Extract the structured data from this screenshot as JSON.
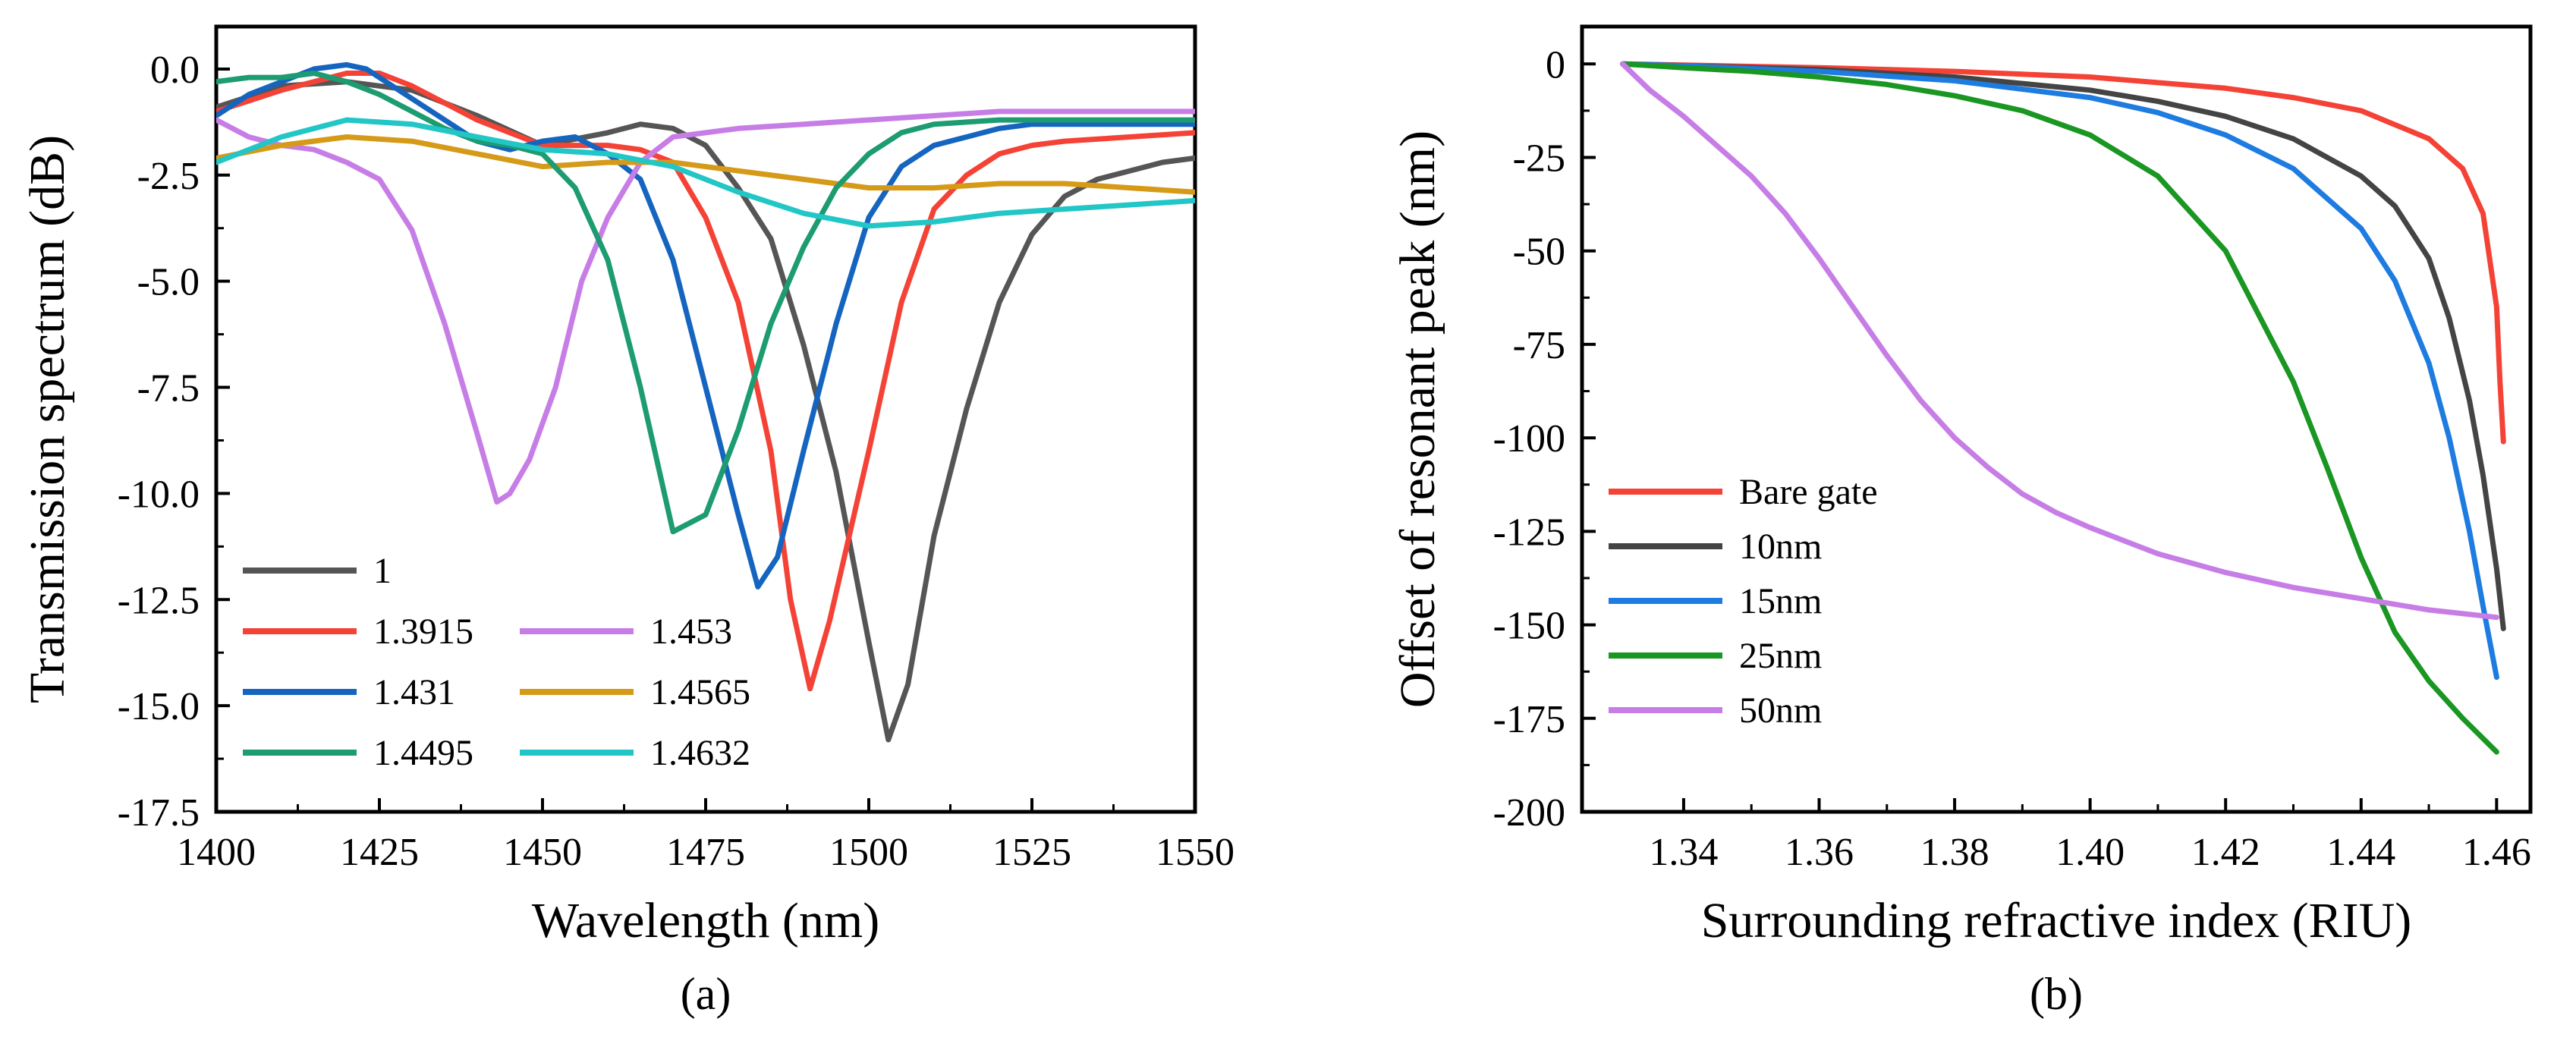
{
  "figure": {
    "panels": [
      {
        "label": "(a)",
        "chart_data": {
          "type": "line",
          "xlabel": "Wavelength (nm)",
          "ylabel": "Transmission spectrum (dB)",
          "xlim": [
            1400,
            1550
          ],
          "ylim": [
            -17.5,
            1.0
          ],
          "xticks": [
            1400,
            1425,
            1450,
            1475,
            1500,
            1525,
            1550
          ],
          "yticks": [
            0.0,
            -2.5,
            -5.0,
            -7.5,
            -10.0,
            -12.5,
            -15.0,
            -17.5
          ],
          "ytick_labels": [
            "0.0",
            "-2.5",
            "-5.0",
            "-7.5",
            "-10.0",
            "-12.5",
            "-15.0",
            "-17.5"
          ],
          "legend_position": "bottom-left",
          "legend_columns": 2,
          "series": [
            {
              "name": "1",
              "color": "#555555",
              "x": [
                1400,
                1410,
                1420,
                1430,
                1440,
                1450,
                1460,
                1465,
                1470,
                1475,
                1480,
                1485,
                1490,
                1495,
                1500,
                1503,
                1506,
                1510,
                1515,
                1520,
                1525,
                1530,
                1535,
                1540,
                1545,
                1550
              ],
              "y": [
                -0.9,
                -0.4,
                -0.3,
                -0.5,
                -1.1,
                -1.8,
                -1.5,
                -1.3,
                -1.4,
                -1.8,
                -2.8,
                -4.0,
                -6.5,
                -9.5,
                -13.5,
                -15.8,
                -14.5,
                -11.0,
                -8.0,
                -5.5,
                -3.9,
                -3.0,
                -2.6,
                -2.4,
                -2.2,
                -2.1
              ]
            },
            {
              "name": "1.3915",
              "color": "#f44336",
              "x": [
                1400,
                1410,
                1420,
                1425,
                1430,
                1440,
                1450,
                1460,
                1465,
                1470,
                1475,
                1480,
                1485,
                1488,
                1491,
                1494,
                1497,
                1500,
                1505,
                1510,
                1515,
                1520,
                1525,
                1530,
                1540,
                1550
              ],
              "y": [
                -1.0,
                -0.5,
                -0.1,
                -0.1,
                -0.4,
                -1.2,
                -1.8,
                -1.8,
                -1.9,
                -2.2,
                -3.5,
                -5.5,
                -9.0,
                -12.5,
                -14.6,
                -13.0,
                -11.0,
                -9.0,
                -5.5,
                -3.3,
                -2.5,
                -2.0,
                -1.8,
                -1.7,
                -1.6,
                -1.5
              ]
            },
            {
              "name": "1.431",
              "color": "#1565c0",
              "x": [
                1400,
                1405,
                1410,
                1415,
                1420,
                1423,
                1428,
                1435,
                1440,
                1445,
                1450,
                1455,
                1460,
                1465,
                1470,
                1475,
                1480,
                1483,
                1486,
                1490,
                1495,
                1500,
                1505,
                1510,
                1515,
                1520,
                1525,
                1530,
                1540,
                1550
              ],
              "y": [
                -1.1,
                -0.6,
                -0.3,
                0.0,
                0.1,
                0.0,
                -0.5,
                -1.2,
                -1.7,
                -1.9,
                -1.7,
                -1.6,
                -2.0,
                -2.6,
                -4.5,
                -7.5,
                -10.5,
                -12.2,
                -11.5,
                -9.0,
                -6.0,
                -3.5,
                -2.3,
                -1.8,
                -1.6,
                -1.4,
                -1.3,
                -1.3,
                -1.3,
                -1.3
              ]
            },
            {
              "name": "1.453",
              "color": "#c77de6",
              "x": [
                1400,
                1405,
                1410,
                1415,
                1420,
                1425,
                1430,
                1435,
                1440,
                1443,
                1445,
                1448,
                1452,
                1456,
                1460,
                1465,
                1470,
                1475,
                1480,
                1490,
                1500,
                1510,
                1520,
                1530,
                1540,
                1550
              ],
              "y": [
                -1.2,
                -1.6,
                -1.8,
                -1.9,
                -2.2,
                -2.6,
                -3.8,
                -6.0,
                -8.6,
                -10.2,
                -10.0,
                -9.2,
                -7.5,
                -5.0,
                -3.5,
                -2.2,
                -1.6,
                -1.5,
                -1.4,
                -1.3,
                -1.2,
                -1.1,
                -1.0,
                -1.0,
                -1.0,
                -1.0
              ]
            },
            {
              "name": "1.4565",
              "color": "#d59a17",
              "x": [
                1400,
                1410,
                1420,
                1430,
                1440,
                1450,
                1460,
                1470,
                1480,
                1490,
                1500,
                1510,
                1520,
                1530,
                1540,
                1550
              ],
              "y": [
                -2.1,
                -1.8,
                -1.6,
                -1.7,
                -2.0,
                -2.3,
                -2.2,
                -2.2,
                -2.4,
                -2.6,
                -2.8,
                -2.8,
                -2.7,
                -2.7,
                -2.8,
                -2.9
              ]
            },
            {
              "name": "1.4495",
              "color": "#1c9c70",
              "x": [
                1400,
                1405,
                1410,
                1415,
                1420,
                1425,
                1430,
                1435,
                1440,
                1445,
                1450,
                1455,
                1460,
                1465,
                1470,
                1475,
                1480,
                1485,
                1490,
                1495,
                1500,
                1505,
                1510,
                1520,
                1530,
                1540,
                1550
              ],
              "y": [
                -0.3,
                -0.2,
                -0.2,
                -0.1,
                -0.3,
                -0.6,
                -1.0,
                -1.4,
                -1.7,
                -1.8,
                -2.0,
                -2.8,
                -4.5,
                -7.5,
                -10.9,
                -10.5,
                -8.5,
                -6.0,
                -4.2,
                -2.8,
                -2.0,
                -1.5,
                -1.3,
                -1.2,
                -1.2,
                -1.2,
                -1.2
              ]
            },
            {
              "name": "1.4632",
              "color": "#22c6c6",
              "x": [
                1400,
                1410,
                1420,
                1430,
                1440,
                1450,
                1460,
                1470,
                1480,
                1490,
                1500,
                1510,
                1520,
                1530,
                1540,
                1550
              ],
              "y": [
                -2.2,
                -1.6,
                -1.2,
                -1.3,
                -1.6,
                -1.9,
                -2.0,
                -2.3,
                -2.9,
                -3.4,
                -3.7,
                -3.6,
                -3.4,
                -3.3,
                -3.2,
                -3.1
              ]
            }
          ]
        }
      },
      {
        "label": "(b)",
        "chart_data": {
          "type": "line",
          "xlabel": "Surrounding refractive index (RIU)",
          "ylabel": "Offset of resonant peak (nm)",
          "xlim": [
            1.325,
            1.465
          ],
          "ylim": [
            -200,
            10
          ],
          "xticks": [
            1.34,
            1.36,
            1.38,
            1.4,
            1.42,
            1.44,
            1.46
          ],
          "xtick_labels": [
            "1.34",
            "1.36",
            "1.38",
            "1.40",
            "1.42",
            "1.44",
            "1.46"
          ],
          "yticks": [
            0,
            -25,
            -50,
            -75,
            -100,
            -125,
            -150,
            -175,
            -200
          ],
          "ytick_labels": [
            "0",
            "-25",
            "-50",
            "-75",
            "-100",
            "-125",
            "-150",
            "-175",
            "-200"
          ],
          "legend_position": "bottom-left",
          "legend_columns": 1,
          "series": [
            {
              "name": "Bare gate",
              "color": "#f44336",
              "x": [
                1.331,
                1.34,
                1.36,
                1.38,
                1.4,
                1.42,
                1.43,
                1.44,
                1.45,
                1.455,
                1.458,
                1.46,
                1.4605,
                1.461
              ],
              "y": [
                0,
                -0.3,
                -1.0,
                -2.0,
                -3.5,
                -6.5,
                -9.0,
                -12.5,
                -20.0,
                -28.0,
                -40.0,
                -65.0,
                -85.0,
                -101.0
              ]
            },
            {
              "name": "10nm",
              "color": "#444444",
              "x": [
                1.331,
                1.34,
                1.36,
                1.38,
                1.4,
                1.41,
                1.42,
                1.43,
                1.44,
                1.445,
                1.45,
                1.453,
                1.456,
                1.458,
                1.46,
                1.461
              ],
              "y": [
                0,
                -0.5,
                -1.5,
                -3.5,
                -7.0,
                -10.0,
                -14.0,
                -20.0,
                -30.0,
                -38.0,
                -52.0,
                -68.0,
                -90.0,
                -110.0,
                -135.0,
                -151.0
              ]
            },
            {
              "name": "15nm",
              "color": "#1e7be0",
              "x": [
                1.331,
                1.34,
                1.36,
                1.38,
                1.4,
                1.41,
                1.42,
                1.43,
                1.44,
                1.445,
                1.45,
                1.453,
                1.456,
                1.458,
                1.46
              ],
              "y": [
                0,
                -0.5,
                -2.0,
                -4.5,
                -9.0,
                -13.0,
                -19.0,
                -28.0,
                -44.0,
                -58.0,
                -80.0,
                -100.0,
                -125.0,
                -145.0,
                -164.0
              ]
            },
            {
              "name": "25nm",
              "color": "#1a9622",
              "x": [
                1.331,
                1.34,
                1.35,
                1.36,
                1.37,
                1.38,
                1.39,
                1.4,
                1.41,
                1.42,
                1.43,
                1.435,
                1.44,
                1.445,
                1.45,
                1.455,
                1.46
              ],
              "y": [
                0,
                -1.0,
                -2.0,
                -3.5,
                -5.5,
                -8.5,
                -12.5,
                -19.0,
                -30.0,
                -50.0,
                -85.0,
                -108.0,
                -132.0,
                -152.0,
                -165.0,
                -175.0,
                -184.0
              ]
            },
            {
              "name": "50nm",
              "color": "#c77de6",
              "x": [
                1.331,
                1.335,
                1.34,
                1.345,
                1.35,
                1.355,
                1.36,
                1.365,
                1.37,
                1.375,
                1.38,
                1.385,
                1.39,
                1.395,
                1.4,
                1.41,
                1.42,
                1.43,
                1.44,
                1.45,
                1.46
              ],
              "y": [
                0,
                -7.0,
                -14.0,
                -22.0,
                -30.0,
                -40.0,
                -52.0,
                -65.0,
                -78.0,
                -90.0,
                -100.0,
                -108.0,
                -115.0,
                -120.0,
                -124.0,
                -131.0,
                -136.0,
                -140.0,
                -143.0,
                -146.0,
                -148.0
              ]
            }
          ]
        }
      }
    ]
  }
}
